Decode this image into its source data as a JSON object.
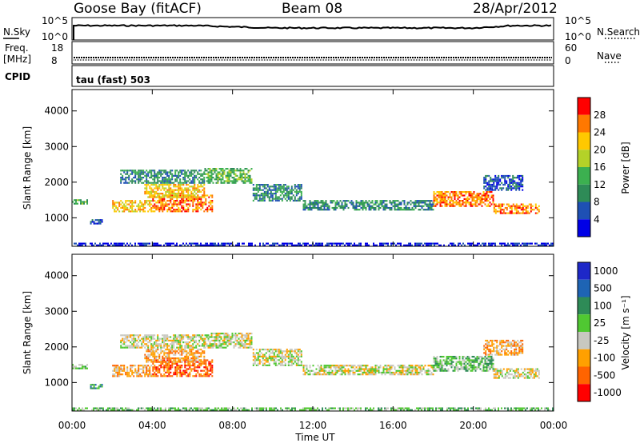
{
  "header": {
    "station": "Goose Bay (fitACF)",
    "beam": "Beam 08",
    "date": "28/Apr/2012"
  },
  "sky_panel": {
    "label": "N.Sky",
    "right_label": "N.Search",
    "left_ticks": [
      "10^5",
      "10^0"
    ],
    "right_ticks": [
      "10^5",
      "10^0"
    ]
  },
  "freq_panel": {
    "label_top": "Freq.",
    "label_bottom": "[MHz]",
    "left_ticks": [
      "18",
      "8"
    ],
    "right_ticks": [
      "60",
      "0"
    ],
    "right_label": "Nave"
  },
  "cpid_panel": {
    "label": "CPID",
    "value": "tau (fast) 503"
  },
  "chart_data": [
    {
      "type": "heatmap",
      "name": "power",
      "ylabel": "Slant Range [km]",
      "ylim": [
        200,
        4600
      ],
      "y_ticks": [
        "1000",
        "2000",
        "3000",
        "4000"
      ],
      "x_ticks": [
        "00:00",
        "04:00",
        "08:00",
        "12:00",
        "16:00",
        "20:00",
        "00:00"
      ],
      "xlim_hours": [
        0,
        24
      ],
      "colorbar_label": "Power [dB]",
      "colorbar_ticks": [
        "4",
        "8",
        "12",
        "16",
        "20",
        "24",
        "28"
      ],
      "colors": [
        "#0000e6",
        "#1e50b4",
        "#2e8b57",
        "#3cb050",
        "#b4d228",
        "#ffc800",
        "#ff7800",
        "#ff0000"
      ],
      "echo_bands": [
        {
          "start_h": 0.0,
          "end_h": 0.8,
          "lo_km": 1350,
          "hi_km": 1520,
          "level": 3
        },
        {
          "start_h": 0.9,
          "end_h": 1.5,
          "lo_km": 800,
          "hi_km": 960,
          "level": 1
        },
        {
          "start_h": 2.0,
          "end_h": 4.0,
          "lo_km": 1150,
          "hi_km": 1500,
          "level": 5
        },
        {
          "start_h": 4.0,
          "end_h": 7.0,
          "lo_km": 1150,
          "hi_km": 1650,
          "level": 6
        },
        {
          "start_h": 3.6,
          "end_h": 6.6,
          "lo_km": 1550,
          "hi_km": 1950,
          "level": 5
        },
        {
          "start_h": 2.4,
          "end_h": 6.6,
          "lo_km": 1950,
          "hi_km": 2350,
          "level": 2
        },
        {
          "start_h": 6.6,
          "end_h": 9.0,
          "lo_km": 1950,
          "hi_km": 2400,
          "level": 3
        },
        {
          "start_h": 9.0,
          "end_h": 11.5,
          "lo_km": 1450,
          "hi_km": 1950,
          "level": 2
        },
        {
          "start_h": 11.5,
          "end_h": 18.0,
          "lo_km": 1200,
          "hi_km": 1500,
          "level": 2
        },
        {
          "start_h": 18.0,
          "end_h": 21.0,
          "lo_km": 1300,
          "hi_km": 1750,
          "level": 6
        },
        {
          "start_h": 21.0,
          "end_h": 23.3,
          "lo_km": 1100,
          "hi_km": 1400,
          "level": 6
        },
        {
          "start_h": 20.5,
          "end_h": 22.5,
          "lo_km": 1750,
          "hi_km": 2200,
          "level": 1
        },
        {
          "start_h": 0.0,
          "end_h": 24.0,
          "lo_km": 200,
          "hi_km": 300,
          "level": 0
        }
      ]
    },
    {
      "type": "heatmap",
      "name": "velocity",
      "ylabel": "Slant Range [km]",
      "ylim": [
        200,
        4600
      ],
      "y_ticks": [
        "1000",
        "2000",
        "3000",
        "4000"
      ],
      "x_ticks": [
        "00:00",
        "04:00",
        "08:00",
        "12:00",
        "16:00",
        "20:00",
        "00:00"
      ],
      "xlabel": "Time UT",
      "xlim_hours": [
        0,
        24
      ],
      "colorbar_label": "Velocity [m s⁻¹]",
      "colorbar_ticks": [
        "1000",
        "500",
        "100",
        "25",
        "-25",
        "-100",
        "-500",
        "-1000"
      ],
      "colors": [
        "#1e28c8",
        "#1e64b4",
        "#2e8b57",
        "#50c832",
        "#c8c8c0",
        "#ffa000",
        "#ff6400",
        "#ff0000"
      ],
      "echo_bands": [
        {
          "start_h": 0.0,
          "end_h": 0.8,
          "lo_km": 1350,
          "hi_km": 1520,
          "level": 3
        },
        {
          "start_h": 0.9,
          "end_h": 1.5,
          "lo_km": 800,
          "hi_km": 960,
          "level": 2
        },
        {
          "start_h": 2.0,
          "end_h": 4.0,
          "lo_km": 1150,
          "hi_km": 1500,
          "level": 5
        },
        {
          "start_h": 4.0,
          "end_h": 7.0,
          "lo_km": 1150,
          "hi_km": 1650,
          "level": 6
        },
        {
          "start_h": 3.6,
          "end_h": 6.6,
          "lo_km": 1550,
          "hi_km": 1950,
          "level": 5
        },
        {
          "start_h": 2.4,
          "end_h": 6.6,
          "lo_km": 1950,
          "hi_km": 2350,
          "level": 4
        },
        {
          "start_h": 6.6,
          "end_h": 9.0,
          "lo_km": 1950,
          "hi_km": 2400,
          "level": 4
        },
        {
          "start_h": 9.0,
          "end_h": 11.5,
          "lo_km": 1450,
          "hi_km": 1950,
          "level": 4
        },
        {
          "start_h": 11.5,
          "end_h": 18.0,
          "lo_km": 1200,
          "hi_km": 1500,
          "level": 4
        },
        {
          "start_h": 18.0,
          "end_h": 21.0,
          "lo_km": 1300,
          "hi_km": 1750,
          "level": 3
        },
        {
          "start_h": 21.0,
          "end_h": 23.3,
          "lo_km": 1100,
          "hi_km": 1400,
          "level": 4
        },
        {
          "start_h": 20.5,
          "end_h": 22.5,
          "lo_km": 1750,
          "hi_km": 2200,
          "level": 5
        },
        {
          "start_h": 0.0,
          "end_h": 24.0,
          "lo_km": 200,
          "hi_km": 300,
          "level": 3
        }
      ]
    }
  ]
}
